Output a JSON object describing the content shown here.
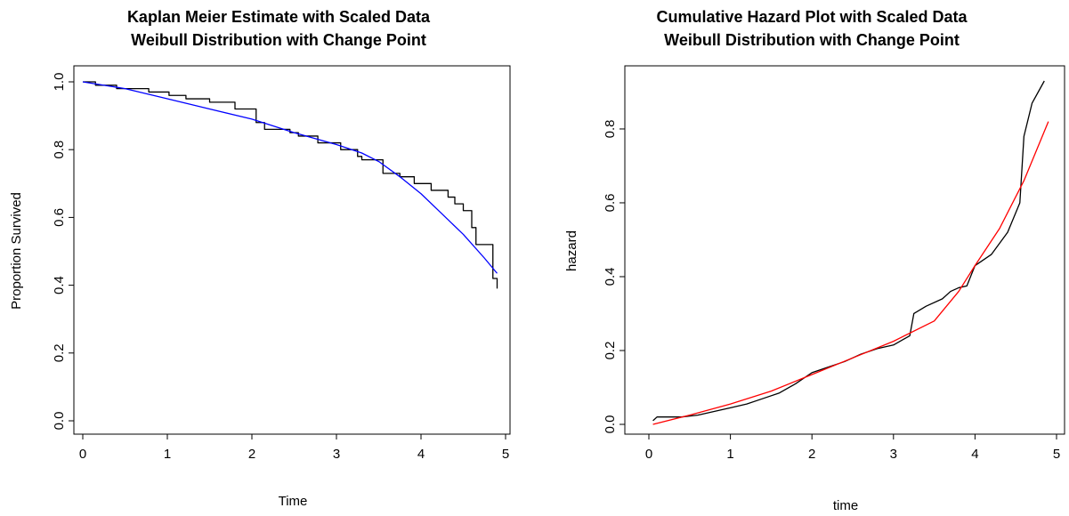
{
  "chart_data": [
    {
      "type": "line",
      "title": [
        "Kaplan Meier Estimate with Scaled Data",
        "Weibull Distribution with Change Point"
      ],
      "xlabel": "Time",
      "ylabel": "Proportion Survived",
      "xlim": [
        0,
        5
      ],
      "ylim": [
        0,
        1
      ],
      "x_ticks": [
        "0",
        "1",
        "2",
        "3",
        "4",
        "5"
      ],
      "y_ticks": [
        "0.0",
        "0.2",
        "0.4",
        "0.6",
        "0.8",
        "1.0"
      ],
      "grid": false,
      "series": [
        {
          "style": "step",
          "color": "#000000",
          "x": [
            0,
            0.15,
            0.4,
            0.78,
            1.02,
            1.22,
            1.5,
            1.8,
            2.05,
            2.15,
            2.45,
            2.55,
            2.78,
            3.05,
            3.25,
            3.3,
            3.55,
            3.75,
            3.92,
            4.12,
            4.32,
            4.4,
            4.5,
            4.6,
            4.65,
            4.85,
            4.9
          ],
          "y": [
            1.0,
            0.99,
            0.98,
            0.97,
            0.96,
            0.95,
            0.94,
            0.92,
            0.88,
            0.86,
            0.85,
            0.84,
            0.82,
            0.8,
            0.78,
            0.77,
            0.73,
            0.72,
            0.7,
            0.68,
            0.66,
            0.64,
            0.62,
            0.57,
            0.52,
            0.42,
            0.39
          ]
        },
        {
          "style": "smooth",
          "color": "#0000ff",
          "x": [
            0,
            0.5,
            1.0,
            1.5,
            2.0,
            2.5,
            3.0,
            3.3,
            3.5,
            3.75,
            4.0,
            4.25,
            4.5,
            4.75,
            4.9
          ],
          "y": [
            1.0,
            0.98,
            0.95,
            0.92,
            0.89,
            0.85,
            0.815,
            0.79,
            0.765,
            0.72,
            0.67,
            0.61,
            0.55,
            0.48,
            0.435
          ]
        }
      ]
    },
    {
      "type": "line",
      "title": [
        "Cumulative Hazard Plot with Scaled Data",
        "Weibull Distribution with Change Point"
      ],
      "xlabel": "time",
      "ylabel": "hazard",
      "xlim": [
        0,
        5
      ],
      "ylim": [
        0,
        0.93
      ],
      "x_ticks": [
        "0",
        "1",
        "2",
        "3",
        "4",
        "5"
      ],
      "y_ticks": [
        "0.0",
        "0.2",
        "0.4",
        "0.6",
        "0.8"
      ],
      "grid": false,
      "series": [
        {
          "style": "line",
          "color": "#000000",
          "x": [
            0.05,
            0.1,
            0.4,
            0.6,
            0.8,
            1.0,
            1.2,
            1.4,
            1.6,
            1.8,
            2.0,
            2.2,
            2.4,
            2.6,
            2.8,
            3.0,
            3.2,
            3.25,
            3.4,
            3.6,
            3.7,
            3.8,
            3.9,
            4.0,
            4.2,
            4.4,
            4.55,
            4.6,
            4.7,
            4.85
          ],
          "y": [
            0.01,
            0.02,
            0.02,
            0.025,
            0.035,
            0.045,
            0.055,
            0.07,
            0.085,
            0.11,
            0.14,
            0.155,
            0.17,
            0.19,
            0.205,
            0.215,
            0.24,
            0.3,
            0.32,
            0.34,
            0.36,
            0.37,
            0.375,
            0.43,
            0.46,
            0.52,
            0.6,
            0.78,
            0.87,
            0.93
          ]
        },
        {
          "style": "smooth",
          "color": "#ff0000",
          "x": [
            0.05,
            0.5,
            1.0,
            1.5,
            2.0,
            2.5,
            3.0,
            3.5,
            3.8,
            4.0,
            4.3,
            4.6,
            4.9
          ],
          "y": [
            0.0,
            0.025,
            0.055,
            0.09,
            0.135,
            0.18,
            0.225,
            0.28,
            0.36,
            0.43,
            0.53,
            0.66,
            0.82
          ]
        }
      ]
    }
  ]
}
